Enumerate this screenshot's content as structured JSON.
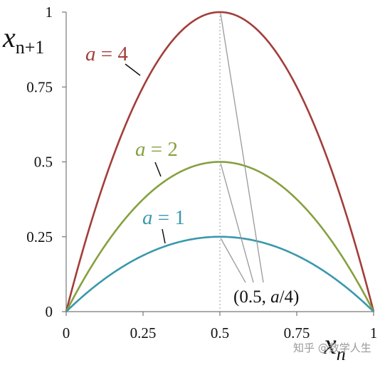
{
  "chart_data": {
    "type": "line",
    "x_var": "x",
    "x_sub": "n",
    "y_var": "x",
    "y_sub": "n+1",
    "xlim": [
      0,
      1
    ],
    "ylim": [
      0,
      1
    ],
    "xticks": [
      0,
      0.25,
      0.5,
      0.75,
      1
    ],
    "yticks": [
      0,
      0.25,
      0.5,
      0.75,
      1
    ],
    "xtick_labels": [
      "0",
      "0.25",
      "0.5",
      "0.75",
      "1"
    ],
    "ytick_labels": [
      "0",
      "0.25",
      "0.5",
      "0.75",
      "1"
    ],
    "grid": false,
    "series": [
      {
        "name": "a = 4",
        "a": 4,
        "color": "#a33d3a"
      },
      {
        "name": "a = 2",
        "a": 2,
        "color": "#86a040"
      },
      {
        "name": "a = 1",
        "a": 1,
        "color": "#3a98ad"
      }
    ],
    "vertex_label_prefix": "(0.5, ",
    "vertex_label_italic": "a",
    "vertex_label_suffix": "/4)",
    "vertices": [
      {
        "x": 0.5,
        "y": 1
      },
      {
        "x": 0.5,
        "y": 0.5
      },
      {
        "x": 0.5,
        "y": 0.25
      }
    ],
    "guide_x": 0.5
  },
  "watermark": "知乎 @数学人生"
}
